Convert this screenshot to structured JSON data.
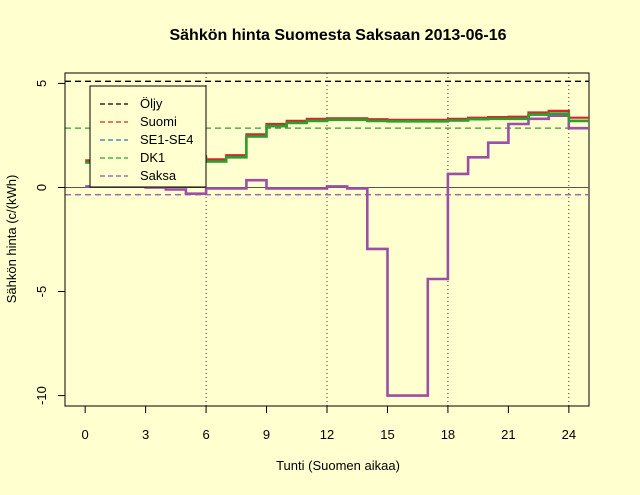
{
  "chart_data": {
    "type": "line",
    "title": "Sähkön hinta Suomesta Saksaan 2013-06-16",
    "xlabel": "Tunti (Suomen aikaa)",
    "ylabel": "Sähkön hinta (c/(kWh)",
    "xlim": [
      -1,
      25
    ],
    "ylim": [
      -10.5,
      5.5
    ],
    "xticks": [
      0,
      3,
      6,
      9,
      12,
      15,
      18,
      21,
      24
    ],
    "yticks": [
      -10,
      -5,
      0,
      5
    ],
    "vlines": [
      6,
      12,
      18,
      24
    ],
    "hlines": [
      {
        "series": "Öljy",
        "y": 5.1,
        "color": "#000000"
      },
      {
        "series": "DK1",
        "y": 2.85,
        "color": "#2ca02c"
      },
      {
        "series": "Saksa",
        "y": -0.35,
        "color": "#9b4fa6"
      }
    ],
    "legend": {
      "placement": "top-left",
      "entries": [
        {
          "label": "Öljy",
          "color": "#000000"
        },
        {
          "label": "Suomi",
          "color": "#d62728"
        },
        {
          "label": "SE1-SE4",
          "color": "#1f77b4"
        },
        {
          "label": "DK1",
          "color": "#2ca02c"
        },
        {
          "label": "Saksa",
          "color": "#9b4fa6"
        }
      ]
    },
    "series": [
      {
        "name": "Suomi",
        "color": "#d62728",
        "step": true,
        "x_start": 0,
        "values": [
          1.3,
          1.3,
          1.4,
          1.4,
          1.45,
          1.5,
          1.35,
          1.55,
          2.55,
          3.05,
          3.2,
          3.3,
          3.32,
          3.32,
          3.28,
          3.25,
          3.25,
          3.25,
          3.3,
          3.35,
          3.38,
          3.4,
          3.6,
          3.68,
          3.35
        ]
      },
      {
        "name": "SE1-SE4",
        "color": "#1f77b4",
        "step": true,
        "x_start": 0,
        "values": [
          1.2,
          1.2,
          1.3,
          1.3,
          1.35,
          1.4,
          1.25,
          1.45,
          2.45,
          2.95,
          3.1,
          3.2,
          3.25,
          3.25,
          3.2,
          3.18,
          3.18,
          3.18,
          3.22,
          3.28,
          3.3,
          3.3,
          3.5,
          3.55,
          3.2
        ]
      },
      {
        "name": "DK1",
        "color": "#2ca02c",
        "step": true,
        "x_start": 0,
        "values": [
          1.2,
          1.2,
          1.3,
          1.3,
          1.35,
          1.4,
          1.25,
          1.45,
          2.45,
          2.95,
          3.1,
          3.2,
          3.25,
          3.25,
          3.2,
          3.18,
          3.18,
          3.18,
          3.22,
          3.28,
          3.3,
          3.3,
          3.5,
          3.55,
          3.2
        ]
      },
      {
        "name": "Saksa",
        "color": "#9b4fa6",
        "step": true,
        "x_start": 0,
        "values": [
          0.05,
          0.05,
          0.05,
          0.0,
          -0.1,
          -0.3,
          -0.05,
          -0.05,
          0.35,
          -0.05,
          -0.05,
          -0.05,
          0.05,
          -0.05,
          -2.95,
          -10.0,
          -10.0,
          -4.4,
          0.65,
          1.45,
          2.15,
          3.05,
          3.3,
          3.45,
          2.85
        ]
      }
    ]
  }
}
